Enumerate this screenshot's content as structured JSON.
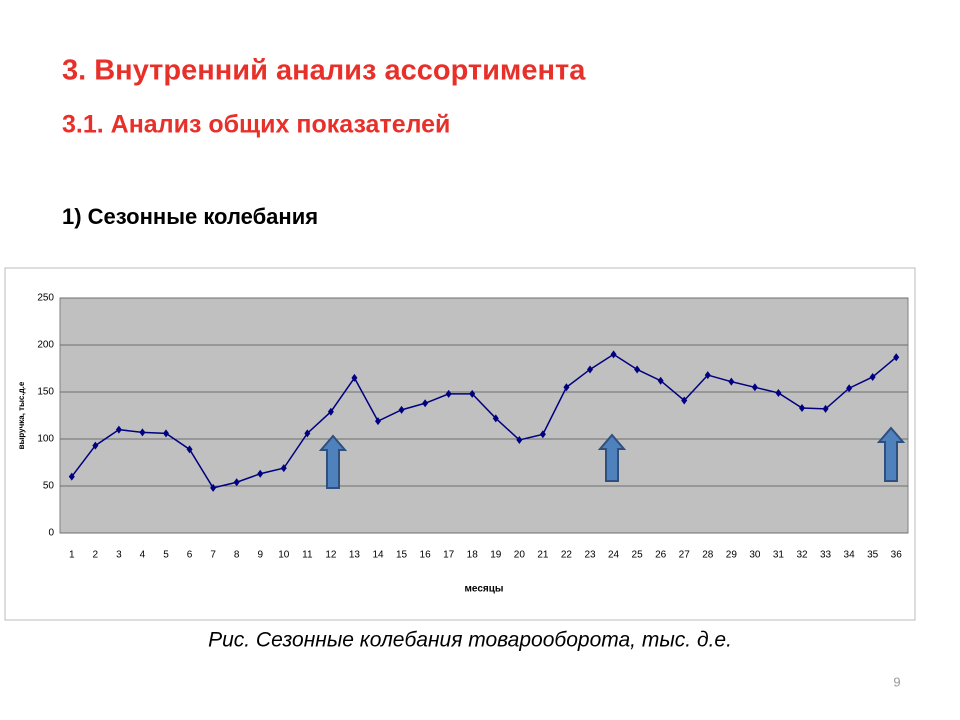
{
  "slide": {
    "title": "3. Внутренний анализ ассортимента",
    "subtitle": "3.1. Анализ общих показателей",
    "section": "1) Сезонные колебания",
    "caption": "Рис.  Сезонные колебания товарооборота, тыс. д.е.",
    "page_number": "9"
  },
  "chart_data": {
    "type": "line",
    "x_label": "месяцы",
    "y_label": "выручка, тыс.д.е",
    "categories": [
      "1",
      "2",
      "3",
      "4",
      "5",
      "6",
      "7",
      "8",
      "9",
      "10",
      "11",
      "12",
      "13",
      "14",
      "15",
      "16",
      "17",
      "18",
      "19",
      "20",
      "21",
      "22",
      "23",
      "24",
      "25",
      "26",
      "27",
      "28",
      "29",
      "30",
      "31",
      "32",
      "33",
      "34",
      "35",
      "36"
    ],
    "series": [
      {
        "name": "выручка",
        "color": "#000080",
        "values": [
          60,
          93,
          110,
          107,
          106,
          89,
          48,
          54,
          63,
          69,
          106,
          129,
          165,
          119,
          131,
          138,
          148,
          148,
          122,
          99,
          105,
          155,
          174,
          190,
          174,
          162,
          141,
          168,
          161,
          155,
          149,
          133,
          132,
          154,
          166,
          187
        ]
      }
    ],
    "ylim": [
      0,
      250
    ],
    "yticks": [
      0,
      50,
      100,
      150,
      200,
      250
    ],
    "grid": true,
    "plot_background": "#c0c0c0"
  }
}
